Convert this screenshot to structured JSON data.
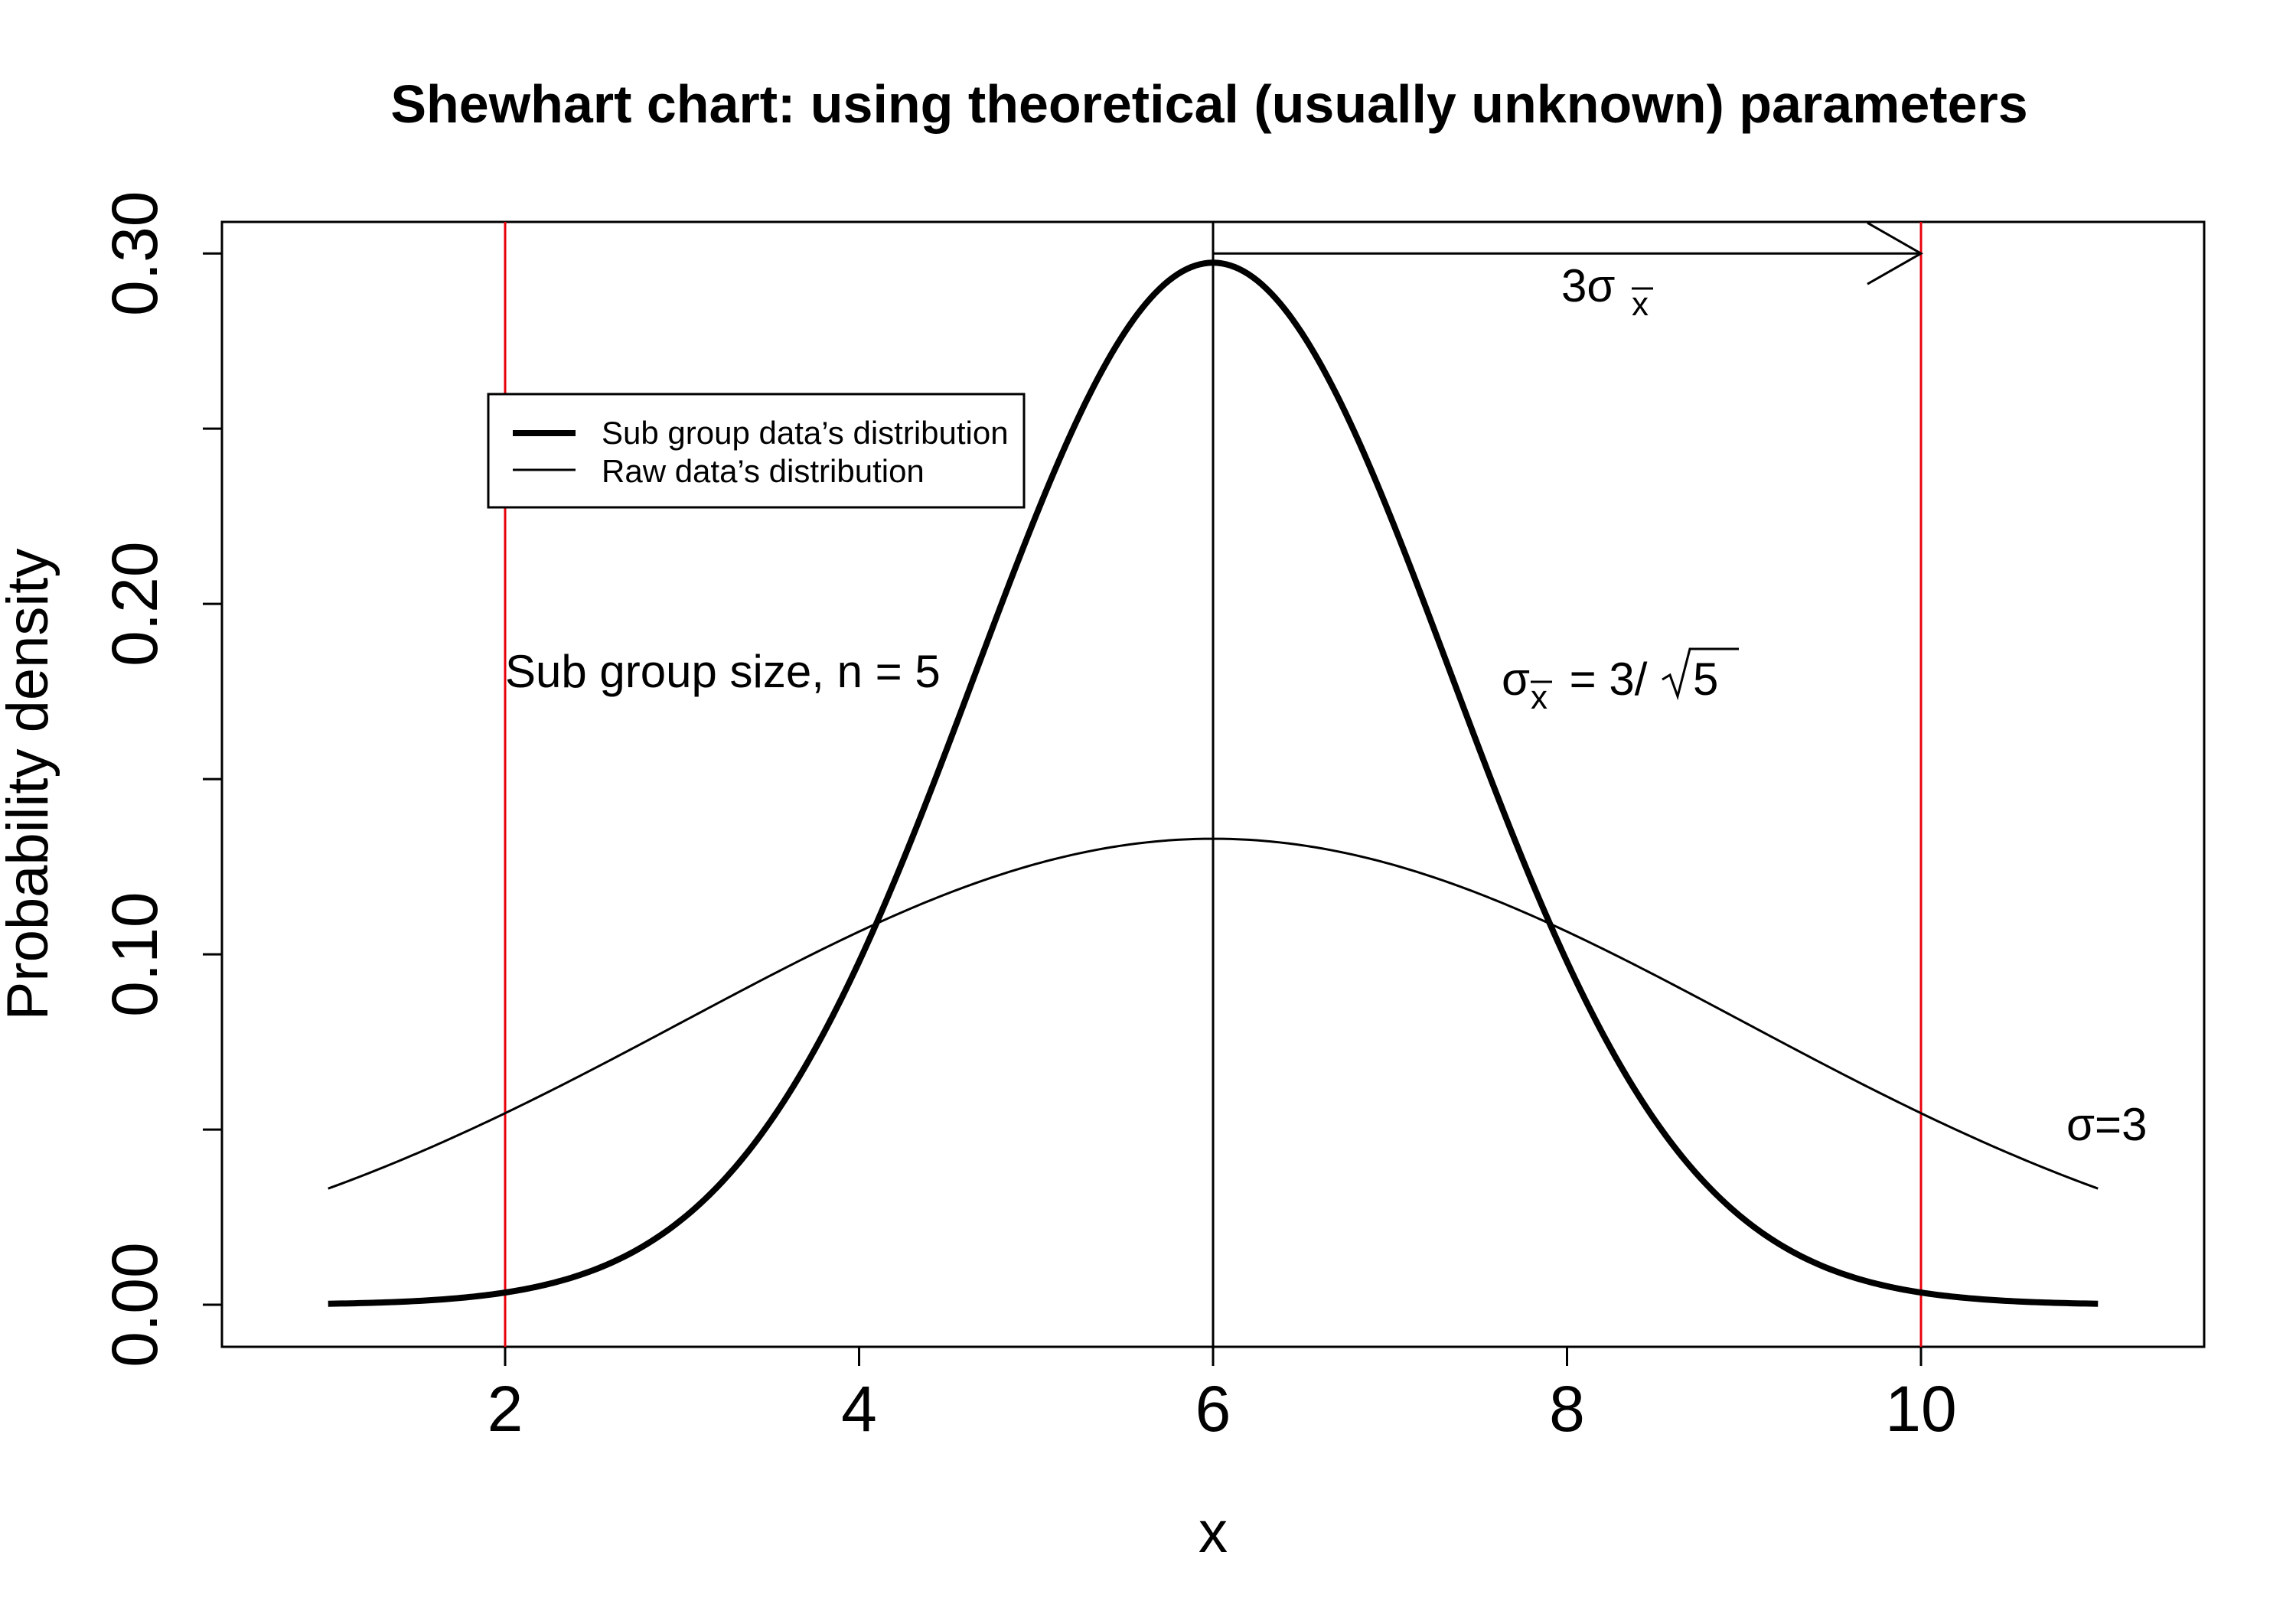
{
  "chart_data": {
    "type": "line",
    "title": "Shewhart chart: using theoretical (usually unknown) parameters",
    "xlabel": "x",
    "ylabel": "Probability density",
    "xlim": [
      0.4,
      11.6
    ],
    "ylim": [
      -0.012,
      0.309
    ],
    "x_ticks": [
      2,
      4,
      6,
      8,
      10
    ],
    "x_tick_labels": [
      "2",
      "4",
      "6",
      "8",
      "10"
    ],
    "y_ticks": [
      0.0,
      0.05,
      0.1,
      0.15,
      0.2,
      0.25,
      0.3
    ],
    "y_tick_labels": [
      "0.00",
      "",
      "0.10",
      "",
      "0.20",
      "",
      "0.30"
    ],
    "grid": false,
    "legend_position": "top-left",
    "series": [
      {
        "name": "Sub group data’s distribution",
        "distribution": "normal",
        "mean": 6,
        "sd": 1.3416,
        "x_range": [
          1,
          11
        ],
        "line_weight": "thick",
        "color": "#000000"
      },
      {
        "name": "Raw data’s distribution",
        "distribution": "normal",
        "mean": 6,
        "sd": 3,
        "x_range": [
          1,
          11
        ],
        "line_weight": "thin",
        "color": "#000000"
      }
    ],
    "vertical_lines": [
      {
        "x": 2,
        "color": "#e8000b"
      },
      {
        "x": 6,
        "color": "#000000"
      },
      {
        "x": 10,
        "color": "#e8000b"
      }
    ],
    "arrow": {
      "from_x": 6,
      "to_x": 10,
      "y": 0.3
    },
    "annotations": {
      "three_sigma": "3σ",
      "three_sigma_sub": "x",
      "subgroup_size": "Sub group size, n = 5",
      "sigma_xbar_lhs": "σ",
      "sigma_xbar_sub": "x",
      "sigma_xbar_rhs": " = 3/",
      "sigma_xbar_root": "5",
      "sigma_raw": "σ=3"
    }
  }
}
